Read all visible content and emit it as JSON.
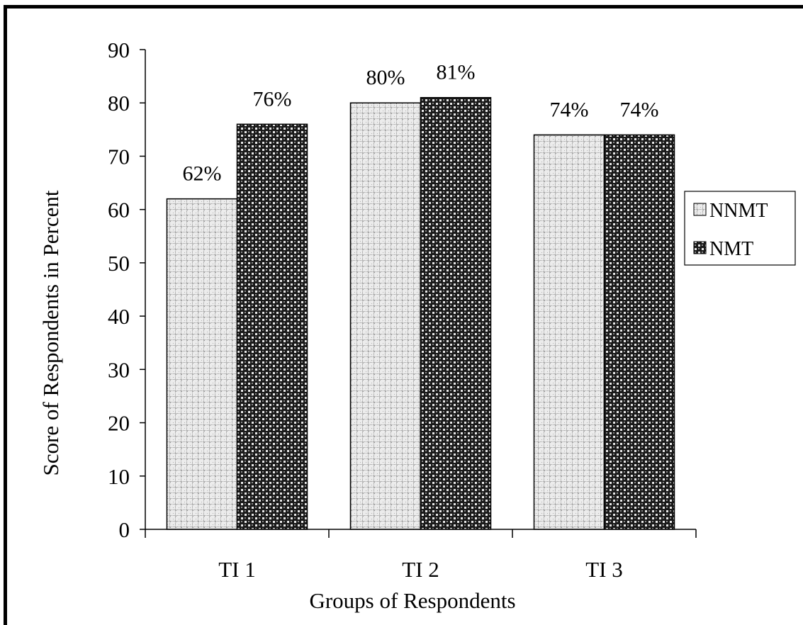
{
  "chart_data": {
    "type": "bar",
    "categories": [
      "TI 1",
      "TI 2",
      "TI 3"
    ],
    "series": [
      {
        "name": "NNMT",
        "values": [
          62,
          80,
          74
        ],
        "labels": [
          "62%",
          "80%",
          "74%"
        ]
      },
      {
        "name": "NMT",
        "values": [
          76,
          81,
          74
        ],
        "labels": [
          "76%",
          "81%",
          "74%"
        ]
      }
    ],
    "title": "",
    "xlabel": "Groups of Respondents",
    "ylabel": "Score of Respondents in Percent",
    "ylim": [
      0,
      90
    ],
    "yticks": [
      0,
      10,
      20,
      30,
      40,
      50,
      60,
      70,
      80,
      90
    ],
    "grid": false,
    "legend_position": "right"
  }
}
